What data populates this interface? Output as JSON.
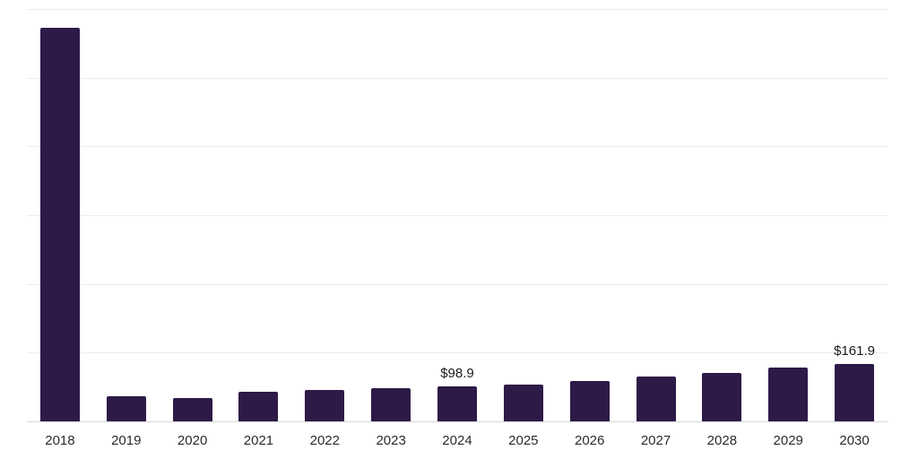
{
  "chart_data": {
    "type": "bar",
    "title": "",
    "xlabel": "",
    "ylabel": "",
    "categories": [
      "2018",
      "2019",
      "2020",
      "2021",
      "2022",
      "2023",
      "2024",
      "2025",
      "2026",
      "2027",
      "2028",
      "2029",
      "2030"
    ],
    "values": [
      1113,
      71,
      66,
      84,
      89,
      94,
      98.9,
      104,
      114,
      127,
      137,
      152,
      161.9
    ],
    "data_labels": [
      "",
      "",
      "",
      "",
      "",
      "",
      "$98.9",
      "",
      "",
      "",
      "",
      "",
      "$161.9"
    ],
    "ylim": [
      0,
      1165
    ],
    "grid": true,
    "gridline_intervals": 6,
    "legend": "none",
    "bar_color": "#2e1a47",
    "gridline_color": "#ededed",
    "axis_line_color": "#d6d6d6",
    "label_color": "#1a1a1a",
    "tick_color": "#2b2b2b"
  }
}
